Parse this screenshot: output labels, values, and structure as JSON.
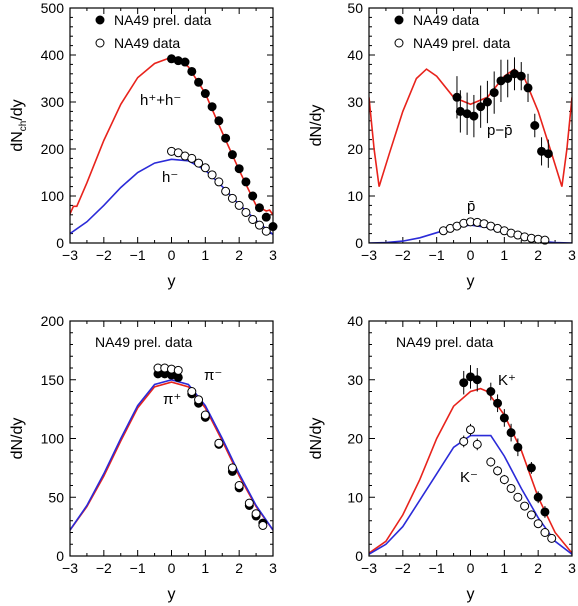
{
  "figure": {
    "panels_summary": "2x2 rapidity distributions"
  },
  "colors": {
    "red": "#e8231c",
    "blue": "#2b2bd8",
    "black": "#000000"
  },
  "chart_data": [
    {
      "type": "scatter",
      "xlabel": "y",
      "ylabel": "dN_ch/dy",
      "ylabel_main": "dN",
      "ylabel_sub": "ch",
      "ylabel_tail": "/dy",
      "xlim": [
        -3,
        3
      ],
      "ylim": [
        0,
        500
      ],
      "xticks": [
        -3,
        -2,
        -1,
        0,
        1,
        2,
        3
      ],
      "yticks": [
        0,
        100,
        200,
        300,
        400,
        500
      ],
      "legend": [
        "NA49 prel. data",
        "NA49 data"
      ],
      "annotations": [
        {
          "text": "h⁺+h⁻",
          "near_series": "h+ + h-"
        },
        {
          "text": "h⁻",
          "near_series": "h-"
        }
      ],
      "series": [
        {
          "name": "NA49 prel. data",
          "kind": "points-filled",
          "x": [
            0.0,
            0.2,
            0.4,
            0.6,
            0.8,
            1.0,
            1.2,
            1.4,
            1.6,
            1.8,
            2.0,
            2.2,
            2.4,
            2.6,
            2.8,
            3.0
          ],
          "y": [
            392,
            388,
            385,
            365,
            342,
            318,
            290,
            260,
            223,
            188,
            158,
            130,
            100,
            75,
            55,
            35
          ]
        },
        {
          "name": "NA49 data",
          "kind": "points-open",
          "x": [
            0.0,
            0.2,
            0.4,
            0.6,
            0.8,
            1.0,
            1.2,
            1.4,
            1.6,
            1.8,
            2.0,
            2.2,
            2.4,
            2.6,
            2.8
          ],
          "y": [
            195,
            192,
            185,
            180,
            170,
            160,
            145,
            130,
            110,
            95,
            80,
            65,
            50,
            38,
            25
          ]
        },
        {
          "name": "h+ + h- model",
          "kind": "line",
          "color": "#e8231c",
          "x": [
            -3.0,
            -2.9,
            -2.8,
            -2.5,
            -2.0,
            -1.5,
            -1.0,
            -0.5,
            0.0,
            0.3,
            0.5,
            1.0,
            1.5,
            2.0,
            2.5,
            2.8,
            2.9,
            3.0
          ],
          "y": [
            62,
            78,
            78,
            128,
            218,
            295,
            352,
            382,
            395,
            385,
            375,
            318,
            235,
            155,
            80,
            68,
            70,
            60
          ]
        },
        {
          "name": "h- model",
          "kind": "line",
          "color": "#2b2bd8",
          "x": [
            -3.0,
            -2.5,
            -2.0,
            -1.5,
            -1.0,
            -0.5,
            0.0,
            0.5,
            1.0,
            1.5,
            2.0,
            2.5,
            3.0
          ],
          "y": [
            20,
            45,
            80,
            118,
            150,
            170,
            178,
            175,
            155,
            120,
            82,
            48,
            18
          ]
        }
      ]
    },
    {
      "type": "scatter",
      "xlabel": "y",
      "ylabel": "dN/dy",
      "xlim": [
        -3,
        3
      ],
      "ylim": [
        0,
        50
      ],
      "xticks": [
        -3,
        -2,
        -1,
        0,
        1,
        2,
        3
      ],
      "yticks": [
        0,
        10,
        20,
        30,
        40,
        50
      ],
      "legend": [
        "NA49 data",
        "NA49 prel. data"
      ],
      "annotations": [
        {
          "text": "p−p̄",
          "near_series": "p - pbar"
        },
        {
          "text": "p̄",
          "near_series": "pbar"
        }
      ],
      "series": [
        {
          "name": "NA49 data",
          "kind": "points-filled",
          "x": [
            -0.4,
            -0.3,
            -0.1,
            0.1,
            0.3,
            0.5,
            0.7,
            0.9,
            1.1,
            1.3,
            1.5,
            1.7,
            1.9,
            2.1,
            2.3
          ],
          "y": [
            31,
            28,
            27.5,
            27,
            29,
            30,
            32,
            34.5,
            35,
            36,
            35.5,
            33,
            25,
            19.5,
            19
          ],
          "err": [
            4.5,
            4.5,
            4.5,
            4.5,
            4.5,
            4.5,
            4.5,
            4.5,
            4.0,
            3.5,
            3.0,
            3.0,
            2.5,
            3.0,
            3.0
          ]
        },
        {
          "name": "NA49 prel. data",
          "kind": "points-open",
          "x": [
            -0.8,
            -0.6,
            -0.4,
            -0.2,
            0.0,
            0.2,
            0.4,
            0.6,
            0.8,
            1.0,
            1.2,
            1.4,
            1.6,
            1.8,
            2.0,
            2.2
          ],
          "y": [
            2.6,
            3.1,
            3.6,
            4.2,
            4.5,
            4.4,
            4.1,
            3.6,
            3.1,
            2.6,
            2.1,
            1.7,
            1.3,
            1.0,
            0.8,
            0.6
          ]
        },
        {
          "name": "p - pbar model",
          "kind": "line",
          "color": "#e8231c",
          "x": [
            -3.0,
            -2.85,
            -2.7,
            -2.4,
            -2.0,
            -1.6,
            -1.3,
            -1.0,
            -0.5,
            0.0,
            0.5,
            1.0,
            1.3,
            1.6,
            2.0,
            2.4,
            2.7,
            2.85,
            3.0
          ],
          "y": [
            31,
            20,
            12,
            19,
            28,
            35,
            37,
            35.5,
            31,
            29.5,
            31,
            35.5,
            37,
            35,
            28,
            19,
            12,
            20,
            31
          ]
        },
        {
          "name": "pbar model",
          "kind": "line",
          "color": "#2b2bd8",
          "x": [
            -3.0,
            -2.5,
            -2.0,
            -1.5,
            -1.0,
            -0.5,
            0.0,
            0.5,
            1.0,
            1.5,
            2.0,
            2.5,
            3.0
          ],
          "y": [
            0,
            0.1,
            0.4,
            1.1,
            2.2,
            3.3,
            3.8,
            3.3,
            2.2,
            1.1,
            0.4,
            0.1,
            0
          ]
        }
      ]
    },
    {
      "type": "scatter",
      "xlabel": "y",
      "ylabel": "dN/dy",
      "xlim": [
        -3,
        3
      ],
      "ylim": [
        0,
        200
      ],
      "xticks": [
        -3,
        -2,
        -1,
        0,
        1,
        2,
        3
      ],
      "yticks": [
        0,
        50,
        100,
        150,
        200
      ],
      "title_in_panel": "NA49 prel. data",
      "annotations": [
        {
          "text": "π⁻",
          "near_series": "pi-"
        },
        {
          "text": "π⁺",
          "near_series": "pi+"
        }
      ],
      "series": [
        {
          "name": "π+ data",
          "kind": "points-filled",
          "x": [
            -0.4,
            -0.2,
            0.0,
            0.2,
            0.6,
            0.8,
            1.0,
            1.4,
            1.8,
            2.0,
            2.3,
            2.5,
            2.7
          ],
          "y": [
            155,
            155,
            154,
            152,
            138,
            130,
            118,
            95,
            72,
            58,
            43,
            34,
            28
          ]
        },
        {
          "name": "π- data",
          "kind": "points-open",
          "x": [
            -0.4,
            -0.2,
            0.0,
            0.2,
            0.6,
            0.8,
            1.0,
            1.4,
            1.8,
            2.0,
            2.3,
            2.5,
            2.7
          ],
          "y": [
            160,
            160,
            159,
            158,
            140,
            133,
            120,
            96,
            75,
            60,
            45,
            36,
            26
          ]
        },
        {
          "name": "π- model",
          "kind": "line",
          "color": "#e8231c",
          "x": [
            -3.0,
            -2.5,
            -2.0,
            -1.5,
            -1.0,
            -0.5,
            0.0,
            0.5,
            1.0,
            1.5,
            2.0,
            2.5,
            3.0
          ],
          "y": [
            22,
            42,
            68,
            98,
            126,
            144,
            148,
            144,
            126,
            98,
            68,
            42,
            22
          ]
        },
        {
          "name": "π+ model",
          "kind": "line",
          "color": "#2b2bd8",
          "x": [
            -3.0,
            -2.5,
            -2.0,
            -1.5,
            -1.0,
            -0.5,
            0.0,
            0.5,
            1.0,
            1.5,
            2.0,
            2.5,
            3.0
          ],
          "y": [
            22,
            43,
            70,
            100,
            128,
            146,
            150,
            146,
            128,
            100,
            70,
            43,
            22
          ]
        }
      ]
    },
    {
      "type": "scatter",
      "xlabel": "y",
      "ylabel": "dN/dy",
      "xlim": [
        -3,
        3
      ],
      "ylim": [
        0,
        40
      ],
      "xticks": [
        -3,
        -2,
        -1,
        0,
        1,
        2,
        3
      ],
      "yticks": [
        0,
        10,
        20,
        30,
        40
      ],
      "title_in_panel": "NA49 prel. data",
      "annotations": [
        {
          "text": "K⁺",
          "near_series": "K+"
        },
        {
          "text": "K⁻",
          "near_series": "K-"
        }
      ],
      "series": [
        {
          "name": "K+ data",
          "kind": "points-filled",
          "x": [
            -0.2,
            0.0,
            0.2,
            0.6,
            0.8,
            1.0,
            1.2,
            1.4,
            1.8,
            2.0,
            2.2
          ],
          "y": [
            29.5,
            30.5,
            30,
            28,
            26,
            23.5,
            21,
            18.5,
            15,
            10,
            7.5
          ],
          "err": [
            2.0,
            2.0,
            2.0,
            1.5,
            1.5,
            1.5,
            1.5,
            1.5,
            1.0,
            1.0,
            1.0
          ]
        },
        {
          "name": "K- data",
          "kind": "points-open",
          "x": [
            -0.2,
            0.0,
            0.2,
            0.6,
            0.8,
            1.0,
            1.2,
            1.4,
            1.6,
            1.8,
            2.0,
            2.2,
            2.4
          ],
          "y": [
            19.5,
            21.5,
            19,
            16,
            14.5,
            13,
            11.5,
            10,
            8.5,
            7,
            5.5,
            4,
            3
          ],
          "err": [
            1.0,
            1.0,
            1.0,
            0.8,
            0.8,
            0.8,
            0,
            0,
            0,
            0,
            0,
            0,
            0
          ]
        },
        {
          "name": "K+ model",
          "kind": "line",
          "color": "#e8231c",
          "x": [
            -3.0,
            -2.5,
            -2.0,
            -1.5,
            -1.0,
            -0.5,
            0.0,
            0.3,
            0.5,
            1.0,
            1.5,
            2.0,
            2.5,
            3.0
          ],
          "y": [
            0.5,
            2.5,
            7,
            13,
            20,
            25.5,
            28,
            28.5,
            28,
            24,
            18,
            10,
            4,
            0.5
          ]
        },
        {
          "name": "K- model",
          "kind": "line",
          "color": "#2b2bd8",
          "x": [
            -3.0,
            -2.5,
            -2.0,
            -1.5,
            -1.0,
            -0.5,
            0.0,
            0.3,
            0.6,
            1.0,
            1.5,
            2.0,
            2.5,
            3.0
          ],
          "y": [
            0.3,
            2,
            5,
            9.5,
            14,
            18.5,
            20.5,
            20.5,
            20.5,
            17,
            11.5,
            6.5,
            2.5,
            0.3
          ]
        }
      ]
    }
  ]
}
